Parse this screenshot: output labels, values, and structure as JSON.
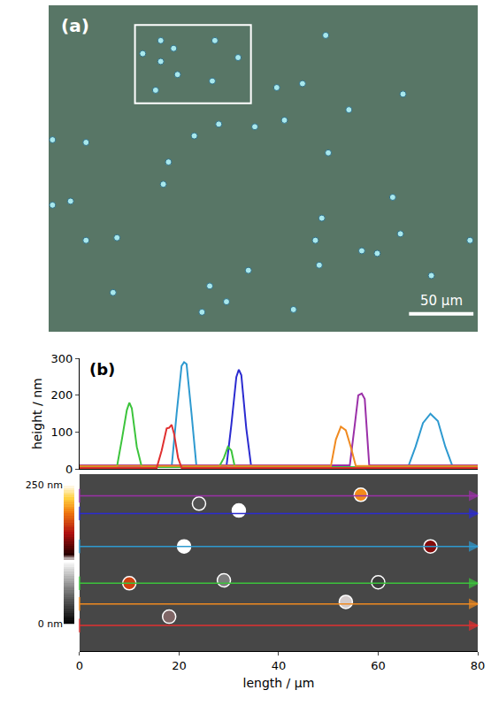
{
  "chart_data": [
    {
      "type": "scatter",
      "label": "(a)",
      "color": "#a8e8ec",
      "x": [
        87,
        129,
        97,
        73,
        147,
        87,
        100,
        127,
        83,
        215,
        275,
        177,
        197,
        132,
        113,
        160,
        183,
        217,
        233,
        3,
        29,
        93,
        89,
        17,
        29,
        3,
        53,
        207,
        212,
        255,
        267,
        273,
        210,
        125,
        138,
        50,
        119,
        155,
        190,
        327,
        297,
        243
      ],
      "y": [
        223,
        223,
        217,
        213,
        210,
        207,
        197,
        192,
        185,
        227,
        182,
        187,
        190,
        159,
        150,
        157,
        162,
        137,
        170,
        147,
        145,
        130,
        113,
        100,
        70,
        97,
        72,
        70,
        87,
        60,
        103,
        75,
        51,
        35,
        23,
        30,
        15,
        47,
        17,
        70,
        43,
        62
      ],
      "xlim": [
        0,
        333
      ],
      "ylim": [
        0,
        250
      ],
      "tick_labels": false,
      "scale_bar": {
        "length": 50,
        "label": "50 µm"
      },
      "inset_box": {
        "x": [
          67,
          157
        ],
        "y": [
          175,
          235
        ]
      }
    },
    {
      "type": "line",
      "label": "(b)",
      "y_label": "height / nm",
      "xlim": [
        0,
        80
      ],
      "xticks": [
        0,
        20,
        40,
        60,
        80
      ],
      "ylim": [
        0,
        300
      ],
      "yticks": [
        0,
        100,
        200,
        300
      ],
      "tick_labels": "y",
      "series": [
        {
          "color": "#2e9ad0",
          "scan_y": 21.3,
          "x": [
            0,
            18.5,
            19.5,
            20.5,
            21,
            21.5,
            22.5,
            23.5,
            66,
            67.5,
            69,
            70.5,
            72,
            73.5,
            75,
            80
          ],
          "values": [
            5,
            5,
            150,
            280,
            290,
            285,
            150,
            5,
            5,
            60,
            125,
            150,
            130,
            60,
            5,
            5
          ]
        },
        {
          "color": "#2b2bd0",
          "scan_y": 28,
          "x": [
            0,
            29.5,
            30.5,
            31.5,
            32,
            32.5,
            33.5,
            34.5,
            80
          ],
          "values": [
            5,
            5,
            120,
            250,
            270,
            255,
            110,
            5,
            5
          ]
        },
        {
          "color": "#9b30a8",
          "scan_y": 31.6,
          "x": [
            0,
            54.3,
            55.3,
            56,
            56.7,
            57.3,
            58.2,
            80
          ],
          "values": [
            10,
            10,
            120,
            200,
            205,
            190,
            10,
            10
          ]
        },
        {
          "color": "#3cc43c",
          "scan_y": 13.8,
          "x": [
            0,
            7.5,
            8.5,
            9.5,
            10,
            10.5,
            11.5,
            12.5,
            28,
            29,
            29.8,
            30.5,
            31.2,
            80
          ],
          "values": [
            5,
            5,
            80,
            160,
            180,
            165,
            60,
            5,
            5,
            30,
            60,
            50,
            5,
            5
          ]
        },
        {
          "color": "#f08a20",
          "scan_y": 9.6,
          "x": [
            0,
            50.5,
            51.5,
            52.5,
            53.5,
            54.5,
            55.5,
            80
          ],
          "values": [
            8,
            8,
            80,
            115,
            105,
            60,
            8,
            8
          ]
        },
        {
          "color": "#e03030",
          "scan_y": 5.2,
          "x": [
            0,
            15.5,
            16.5,
            17.5,
            18,
            18.5,
            19,
            19.8,
            20.5,
            80
          ],
          "values": [
            3,
            3,
            50,
            110,
            112,
            120,
            95,
            30,
            3,
            3
          ]
        }
      ]
    },
    {
      "type": "scatter",
      "x_label": "length / µm",
      "xlim": [
        0,
        80
      ],
      "xticks": [
        0,
        20,
        40,
        60,
        80
      ],
      "ylim": [
        0,
        36
      ],
      "tick_labels": "x",
      "particles": {
        "x": [
          10,
          18,
          21,
          32,
          56.5,
          53.5,
          70.5,
          29,
          24,
          60
        ],
        "y": [
          13.8,
          7,
          21.3,
          28.6,
          31.8,
          10,
          21.3,
          14.4,
          30,
          14
        ],
        "height": [
          180,
          120,
          290,
          270,
          205,
          115,
          150,
          60,
          40,
          30
        ]
      },
      "colorbar": {
        "range": [
          0,
          250
        ],
        "ticks": [
          {
            "value": 0,
            "label": "0 nm"
          },
          {
            "value": 250,
            "label": "250 nm"
          }
        ]
      }
    }
  ]
}
